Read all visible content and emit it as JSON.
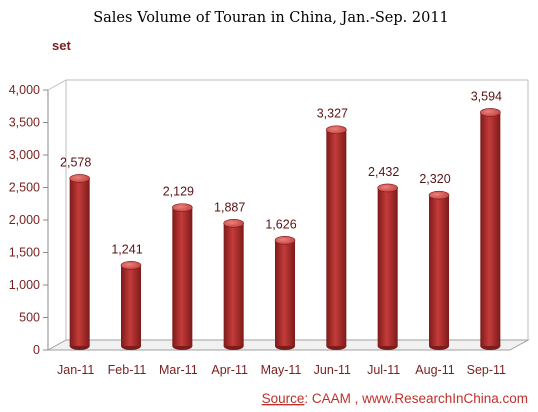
{
  "chart_data": {
    "type": "bar",
    "title": "Sales Volume of Touran in China, Jan.-Sep. 2011",
    "ylabel": "set",
    "categories": [
      "Jan-11",
      "Feb-11",
      "Mar-11",
      "Apr-11",
      "May-11",
      "Jun-11",
      "Jul-11",
      "Aug-11",
      "Sep-11"
    ],
    "values": [
      2578,
      1241,
      2129,
      1887,
      1626,
      3327,
      2432,
      2320,
      3594
    ],
    "value_labels": [
      "2,578",
      "1,241",
      "2,129",
      "1,887",
      "1,626",
      "3,327",
      "2,432",
      "2,320",
      "3,594"
    ],
    "ylim": [
      0,
      4000
    ],
    "y_ticks": [
      0,
      500,
      1000,
      1500,
      2000,
      2500,
      3000,
      3500,
      4000
    ],
    "y_tick_labels": [
      "0",
      "500",
      "1,000",
      "1,500",
      "2,000",
      "2,500",
      "3,000",
      "3,500",
      "4,000"
    ],
    "grid": false,
    "bar_color": "#c43c3a",
    "bar_dark_color": "#7d1a1a",
    "bar_light_color": "#e8837f"
  },
  "source": {
    "label": "Source",
    "text": ": CAAM , www.ResearchInChina.com"
  }
}
